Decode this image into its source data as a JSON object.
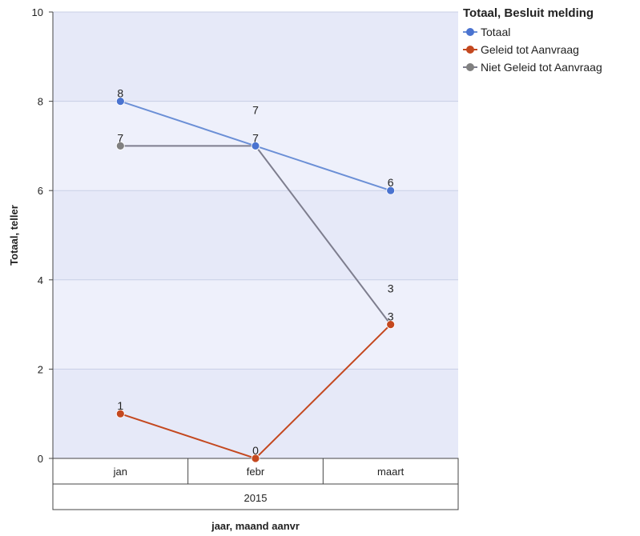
{
  "legend": {
    "title": "Totaal, Besluit melding"
  },
  "chart_data": {
    "type": "line",
    "categories": [
      "jan",
      "febr",
      "maart"
    ],
    "group_label": "2015",
    "xlabel": "jaar, maand aanvr",
    "ylabel": "Totaal, teller",
    "ylim": [
      0,
      10
    ],
    "yticks": [
      0,
      2,
      4,
      6,
      8,
      10
    ],
    "grid": true,
    "legend_position": "top-right",
    "series": [
      {
        "name": "Totaal",
        "values": [
          8,
          7,
          6
        ],
        "color": "#6b8fd6",
        "marker": "#4a73d0"
      },
      {
        "name": "Geleid tot Aanvraag",
        "values": [
          1,
          0,
          3
        ],
        "color": "#c4481f",
        "marker": "#c4481f"
      },
      {
        "name": "Niet Geleid tot Aanvraag",
        "values": [
          7,
          7,
          3
        ],
        "color": "#7e7e8e",
        "marker": "#808080"
      }
    ]
  }
}
